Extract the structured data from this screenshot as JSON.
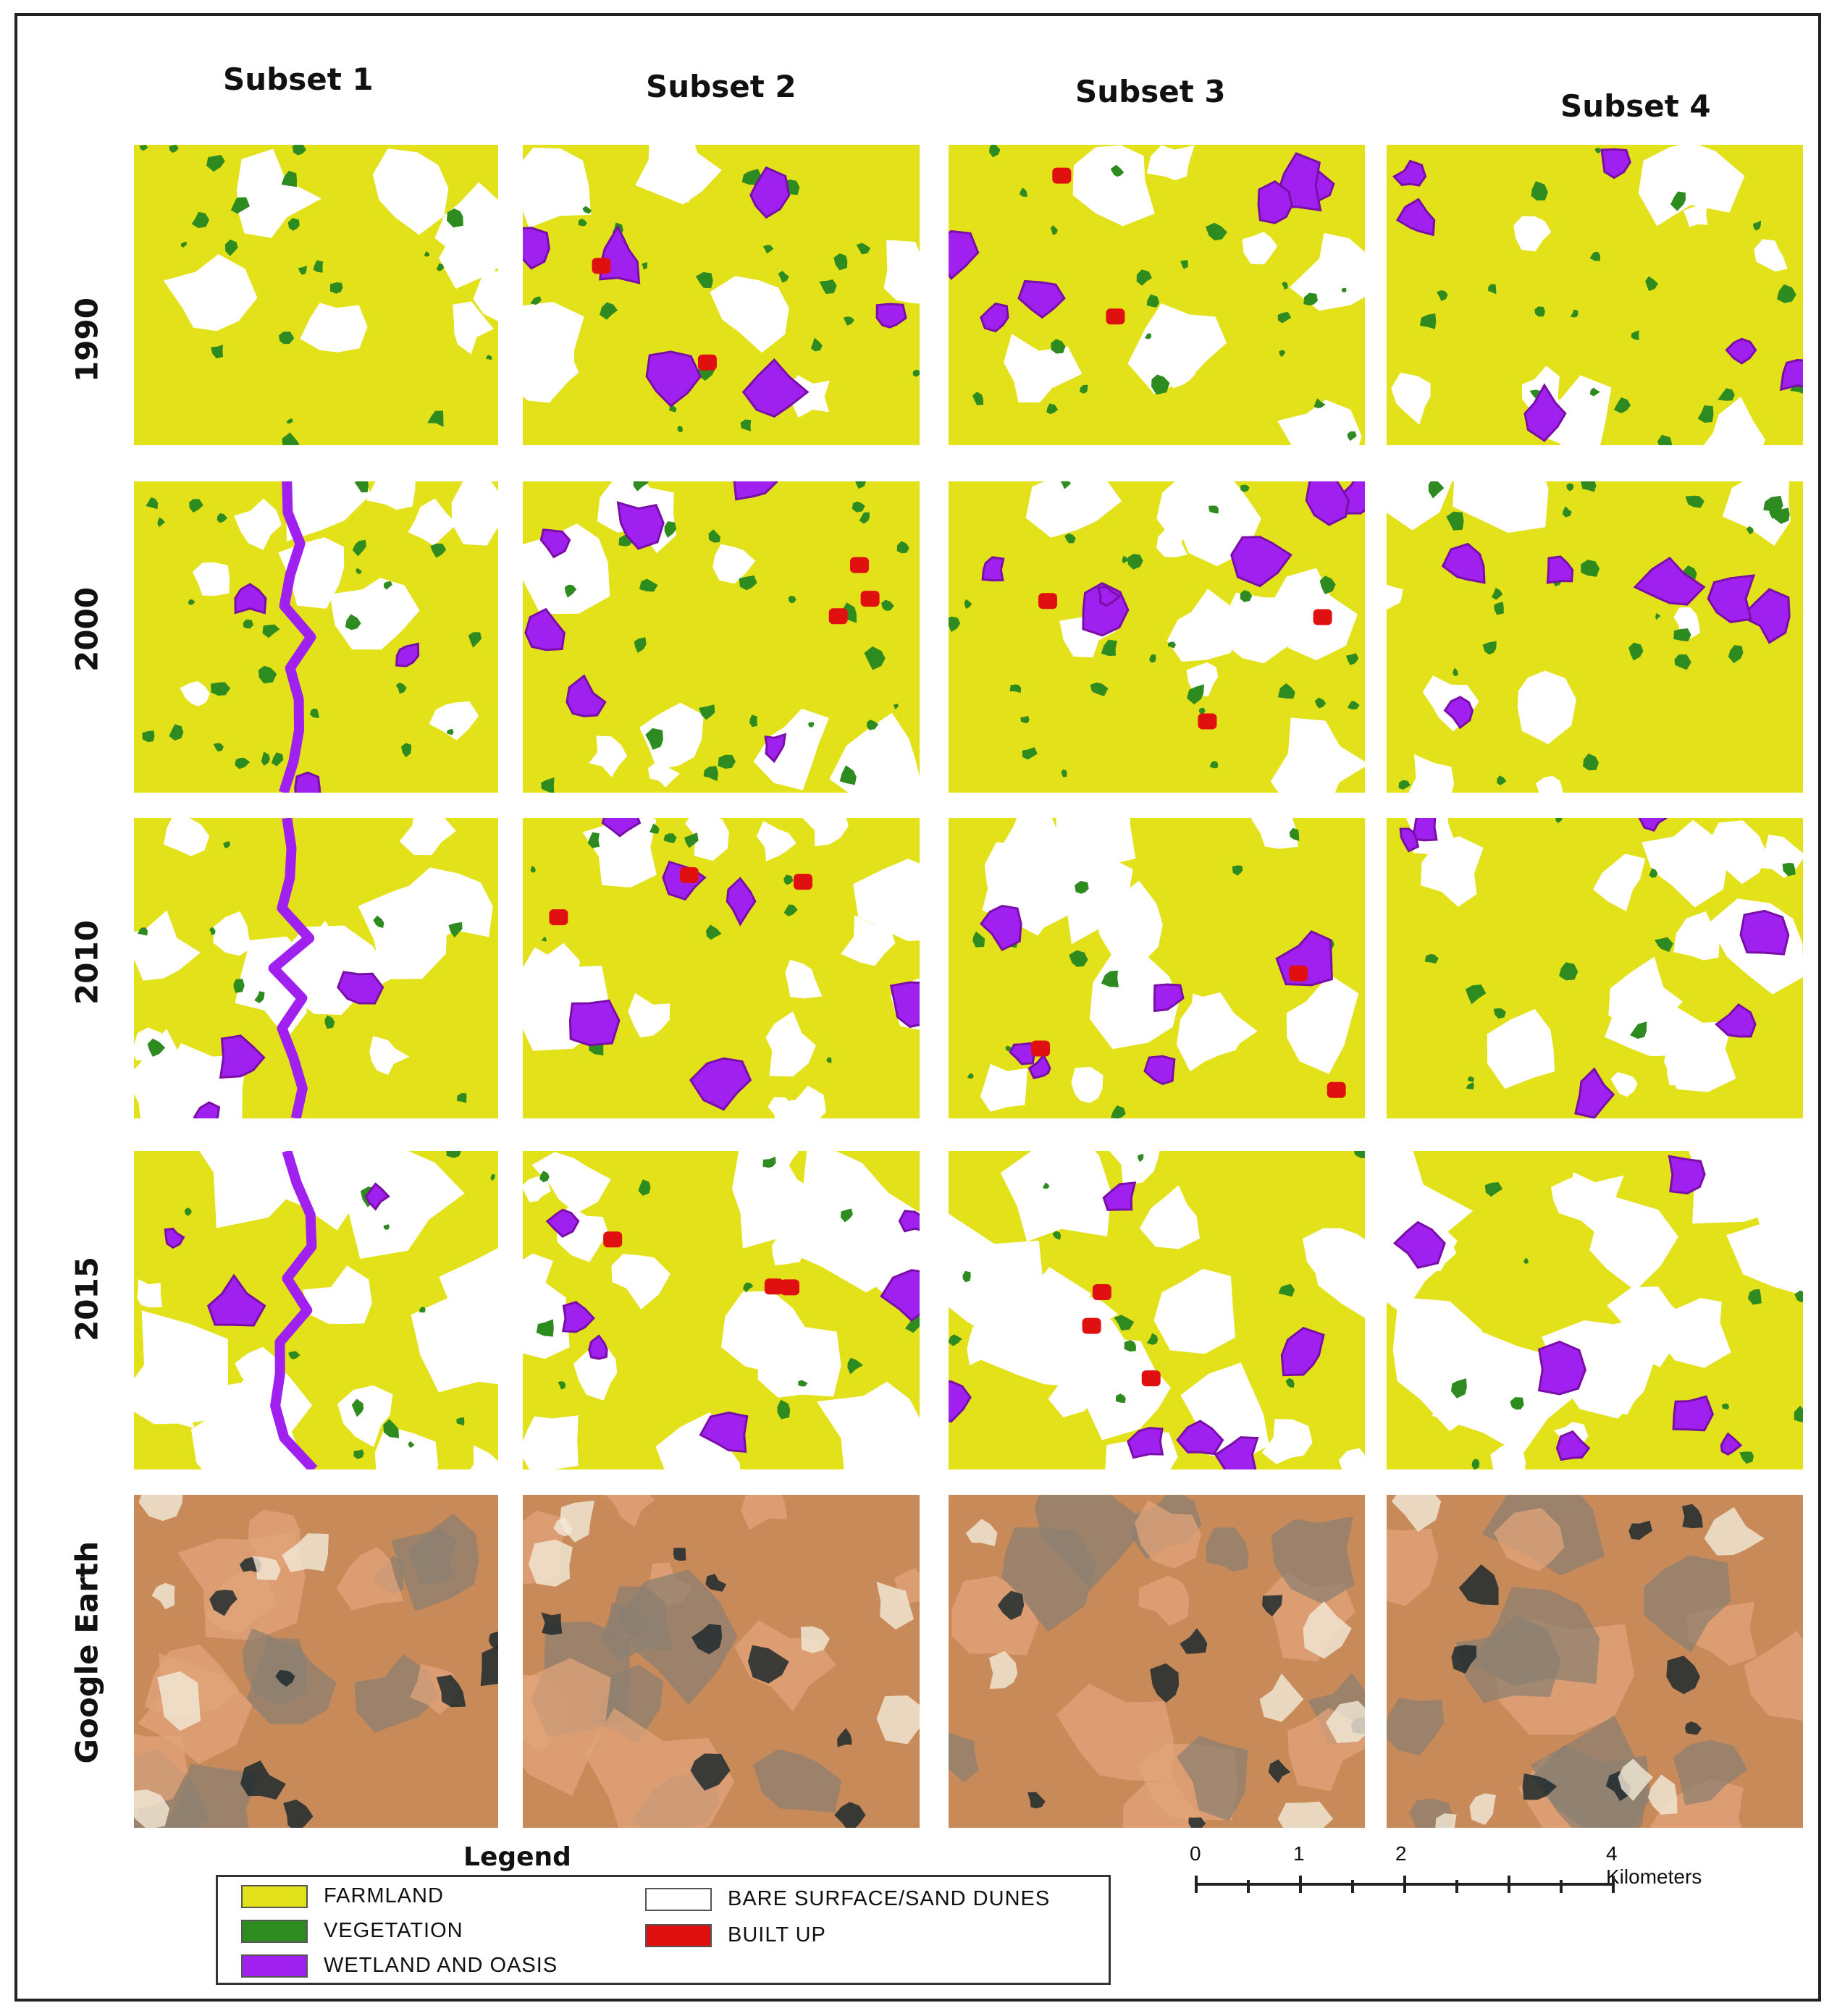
{
  "columns": [
    "Subset 1",
    "Subset 2",
    "Subset 3",
    "Subset 4"
  ],
  "rows": [
    "1990",
    "2000",
    "2010",
    "2015",
    "Google Earth"
  ],
  "legend": {
    "title": "Legend",
    "items": [
      {
        "label": "FARMLAND",
        "color": "#e2e11a"
      },
      {
        "label": "VEGETATION",
        "color": "#2e8b1f"
      },
      {
        "label": "WETLAND AND OASIS",
        "color": "#a020f0"
      },
      {
        "label": "BARE SURFACE/SAND DUNES",
        "color": "#ffffff"
      },
      {
        "label": "BUILT UP",
        "color": "#e01010"
      }
    ]
  },
  "scale": {
    "ticks": [
      "0",
      "1",
      "2",
      "4 Kilometers"
    ]
  },
  "colors": {
    "farmland": "#e2e11a",
    "vegetation": "#2e8b1f",
    "wetland": "#a020f0",
    "bare": "#ffffff",
    "builtup": "#e01010",
    "earth_base": "#c98a5a"
  }
}
